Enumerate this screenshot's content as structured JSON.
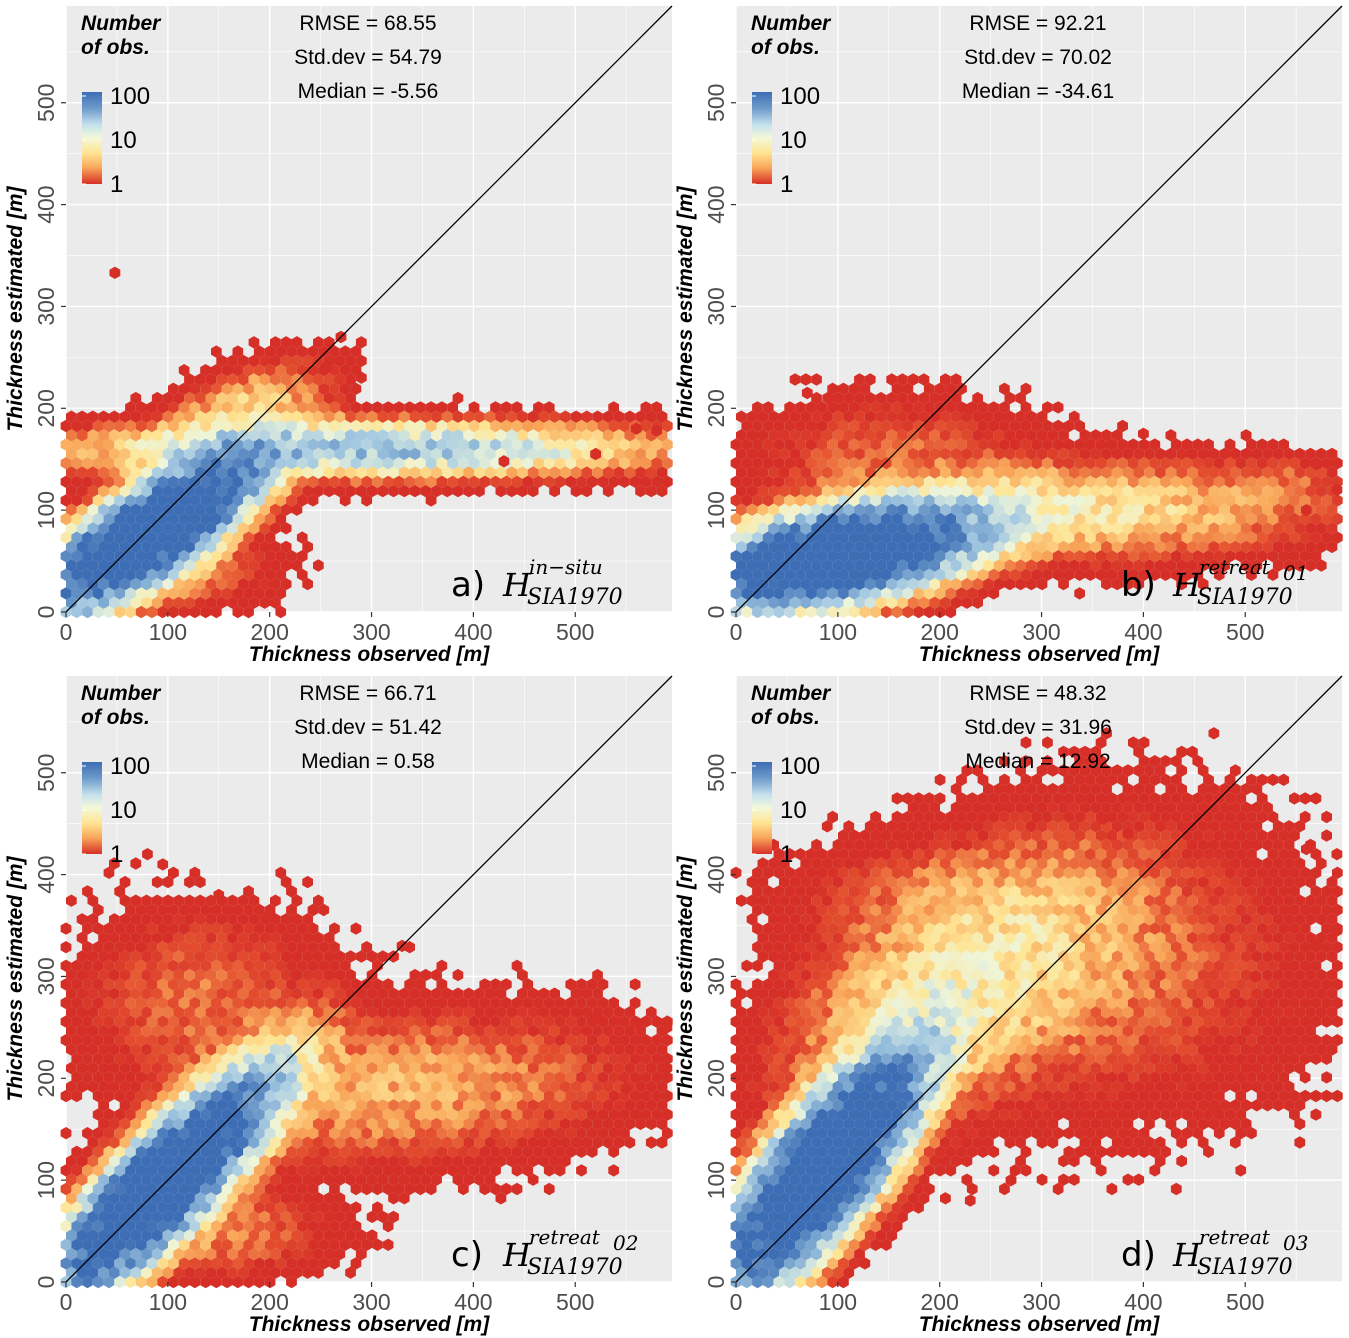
{
  "chart_data": [
    {
      "type": "heatmap",
      "subtype": "hexbin",
      "panel": "a)",
      "label_base": "H",
      "label_sub": "SIA1970",
      "label_sup": "in−situ",
      "xlabel": "Thickness observed [m]",
      "ylabel": "Thickness estimated [m]",
      "xlim": [
        0,
        595
      ],
      "ylim": [
        0,
        595
      ],
      "xticks": [
        0,
        100,
        200,
        300,
        400,
        500
      ],
      "yticks": [
        0,
        100,
        200,
        300,
        400,
        500
      ],
      "grid": true,
      "identity_line": true,
      "stats": [
        "RMSE = 68.55",
        "Std.dev = 54.79",
        "Median = -5.56"
      ],
      "hex_clusters": [
        {
          "x": 85,
          "y": 80,
          "sx": 55,
          "sy": 40,
          "rho": 0.8,
          "peak": 300,
          "n": 1
        },
        {
          "x": 300,
          "y": 160,
          "sx": 140,
          "sy": 14,
          "rho": 0,
          "peak": 40,
          "n": 1
        },
        {
          "x": 170,
          "y": 200,
          "sx": 45,
          "sy": 25,
          "rho": 0.6,
          "peak": 8,
          "n": 1
        },
        {
          "x": 80,
          "y": 40,
          "sx": 60,
          "sy": 20,
          "rho": 0,
          "peak": 6,
          "n": 1
        }
      ],
      "outliers": [
        [
          48,
          333
        ],
        [
          270,
          270
        ],
        [
          255,
          240
        ],
        [
          290,
          230
        ],
        [
          560,
          180
        ],
        [
          580,
          178
        ],
        [
          520,
          155
        ],
        [
          430,
          148
        ]
      ]
    },
    {
      "type": "heatmap",
      "subtype": "hexbin",
      "panel": "b)",
      "label_base": "H",
      "label_sub": "SIA1970",
      "label_sup": "retreat",
      "label_sup2": "01",
      "xlabel": "Thickness observed [m]",
      "ylabel": "Thickness estimated [m]",
      "xlim": [
        0,
        595
      ],
      "ylim": [
        0,
        595
      ],
      "xticks": [
        0,
        100,
        200,
        300,
        400,
        500
      ],
      "yticks": [
        0,
        100,
        200,
        300,
        400,
        500
      ],
      "grid": true,
      "identity_line": true,
      "stats": [
        "RMSE = 92.21",
        "Std.dev = 70.02",
        "Median = -34.61"
      ],
      "hex_clusters": [
        {
          "x": 100,
          "y": 55,
          "sx": 70,
          "sy": 25,
          "rho": 0.5,
          "peak": 300,
          "n": 1
        },
        {
          "x": 320,
          "y": 100,
          "sx": 130,
          "sy": 25,
          "rho": 0,
          "peak": 12,
          "n": 1
        },
        {
          "x": 150,
          "y": 160,
          "sx": 80,
          "sy": 30,
          "rho": 0,
          "peak": 2.5,
          "n": 1
        },
        {
          "x": 530,
          "y": 130,
          "sx": 50,
          "sy": 15,
          "rho": 0,
          "peak": 2,
          "n": 1
        }
      ],
      "outliers": [
        [
          70,
          215
        ],
        [
          90,
          210
        ],
        [
          230,
          200
        ],
        [
          400,
          175
        ],
        [
          570,
          145
        ],
        [
          590,
          120
        ],
        [
          560,
          100
        ]
      ]
    },
    {
      "type": "heatmap",
      "subtype": "hexbin",
      "panel": "c)",
      "label_base": "H",
      "label_sub": "SIA1970",
      "label_sup": "retreat",
      "label_sup2": "02",
      "xlabel": "Thickness observed [m]",
      "ylabel": "Thickness estimated [m]",
      "xlim": [
        0,
        595
      ],
      "ylim": [
        0,
        595
      ],
      "xticks": [
        0,
        100,
        200,
        300,
        400,
        500
      ],
      "yticks": [
        0,
        100,
        200,
        300,
        400,
        500
      ],
      "grid": true,
      "identity_line": true,
      "stats": [
        "RMSE = 66.71",
        "Std.dev = 51.42",
        "Median = 0.58"
      ],
      "hex_clusters": [
        {
          "x": 95,
          "y": 95,
          "sx": 55,
          "sy": 55,
          "rho": 0.85,
          "peak": 300,
          "n": 1
        },
        {
          "x": 330,
          "y": 190,
          "sx": 120,
          "sy": 40,
          "rho": 0.2,
          "peak": 6,
          "n": 1
        },
        {
          "x": 130,
          "y": 280,
          "sx": 70,
          "sy": 50,
          "rho": 0,
          "peak": 3,
          "n": 1
        },
        {
          "x": 150,
          "y": 50,
          "sx": 60,
          "sy": 25,
          "rho": 0,
          "peak": 4,
          "n": 1
        }
      ],
      "outliers": [
        [
          80,
          420
        ],
        [
          95,
          410
        ],
        [
          150,
          380
        ],
        [
          200,
          360
        ],
        [
          330,
          330
        ],
        [
          520,
          260
        ],
        [
          560,
          255
        ],
        [
          590,
          250
        ],
        [
          590,
          210
        ],
        [
          550,
          190
        ]
      ]
    },
    {
      "type": "heatmap",
      "subtype": "hexbin",
      "panel": "d)",
      "label_base": "H",
      "label_sub": "SIA1970",
      "label_sup": "retreat",
      "label_sup2": "03",
      "xlabel": "Thickness observed [m]",
      "ylabel": "Thickness estimated [m]",
      "xlim": [
        0,
        595
      ],
      "ylim": [
        0,
        595
      ],
      "xticks": [
        0,
        100,
        200,
        300,
        400,
        500
      ],
      "yticks": [
        0,
        100,
        200,
        300,
        400,
        500
      ],
      "grid": true,
      "identity_line": true,
      "stats": [
        "RMSE = 48.32",
        "Std.dev = 31.96",
        "Median = 12.92"
      ],
      "hex_clusters": [
        {
          "x": 85,
          "y": 110,
          "sx": 50,
          "sy": 60,
          "rho": 0.8,
          "peak": 300,
          "n": 1
        },
        {
          "x": 220,
          "y": 290,
          "sx": 90,
          "sy": 70,
          "rho": 0.5,
          "peak": 12,
          "n": 1
        },
        {
          "x": 370,
          "y": 310,
          "sx": 110,
          "sy": 80,
          "rho": 0,
          "peak": 3,
          "n": 1
        },
        {
          "x": 200,
          "y": 380,
          "sx": 90,
          "sy": 30,
          "rho": 0,
          "peak": 2,
          "n": 1
        }
      ],
      "outliers": [
        [
          360,
          455
        ],
        [
          385,
          440
        ],
        [
          560,
          425
        ],
        [
          590,
          420
        ],
        [
          590,
          345
        ],
        [
          570,
          330
        ],
        [
          510,
          300
        ],
        [
          470,
          170
        ],
        [
          230,
          80
        ],
        [
          270,
          100
        ]
      ]
    }
  ],
  "legend": {
    "title_line1": "Number",
    "title_line2": "of obs.",
    "values": [
      "100",
      "10",
      "1"
    ],
    "colors": [
      "#3d6db4",
      "#a8cce2",
      "#eef5d9",
      "#fee594",
      "#f9a85a",
      "#e4502f",
      "#d62f27"
    ]
  },
  "panel_background": "#ebebeb",
  "grid_color": "#ffffff"
}
